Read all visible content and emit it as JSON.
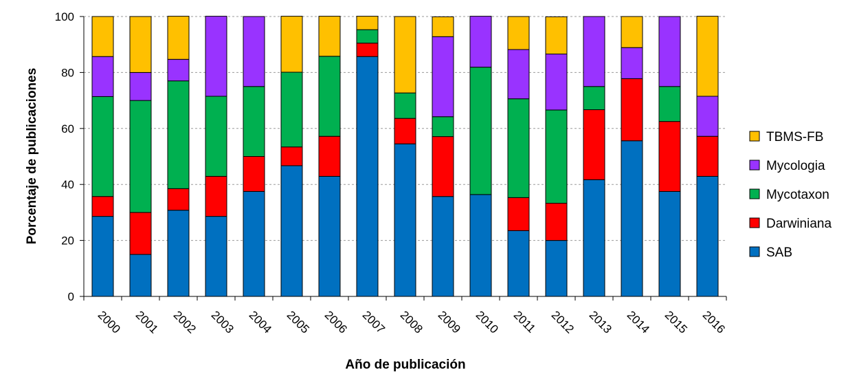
{
  "chart_data": {
    "type": "bar",
    "stacked": true,
    "percent": true,
    "categories": [
      "2000",
      "2001",
      "2002",
      "2003",
      "2004",
      "2005",
      "2006",
      "2007",
      "2008",
      "2009",
      "2010",
      "2011",
      "2012",
      "2013",
      "2014",
      "2015",
      "2016"
    ],
    "series": [
      {
        "name": "SAB",
        "color": "#0070C0",
        "values": [
          28.6,
          15.0,
          30.8,
          28.6,
          37.5,
          46.7,
          42.9,
          85.7,
          54.5,
          35.7,
          36.4,
          23.5,
          20.0,
          41.7,
          55.6,
          37.5,
          42.9
        ]
      },
      {
        "name": "Darwiniana",
        "color": "#FF0000",
        "values": [
          7.1,
          15.0,
          7.7,
          14.3,
          12.5,
          6.7,
          14.3,
          4.8,
          9.1,
          21.4,
          0,
          11.8,
          13.3,
          25.0,
          22.2,
          25.0,
          14.3
        ]
      },
      {
        "name": "Mycotaxon",
        "color": "#00B050",
        "values": [
          35.7,
          40.0,
          38.5,
          28.6,
          25.0,
          26.7,
          28.6,
          4.8,
          9.1,
          7.1,
          45.5,
          35.3,
          33.3,
          8.3,
          0,
          12.5,
          0
        ]
      },
      {
        "name": "Mycologia",
        "color": "#9933FF",
        "values": [
          14.3,
          10.0,
          7.7,
          28.6,
          25.0,
          0,
          0,
          0,
          0,
          28.6,
          18.2,
          17.6,
          20.0,
          25.0,
          11.1,
          25.0,
          14.3
        ]
      },
      {
        "name": "TBMS-FB",
        "color": "#FFC000",
        "values": [
          14.3,
          20.0,
          15.4,
          0,
          0,
          20.0,
          14.3,
          4.8,
          27.3,
          7.1,
          0,
          11.8,
          13.3,
          0,
          11.1,
          0,
          28.6
        ]
      }
    ],
    "xlabel": "Año de publicación",
    "ylabel": "Porcentaje de publicaciones",
    "ylim": [
      0,
      100
    ],
    "yticks": [
      0,
      20,
      40,
      60,
      80,
      100
    ],
    "grid": true,
    "legend_position": "right",
    "legend_order": [
      "TBMS-FB",
      "Mycologia",
      "Mycotaxon",
      "Darwiniana",
      "SAB"
    ]
  }
}
